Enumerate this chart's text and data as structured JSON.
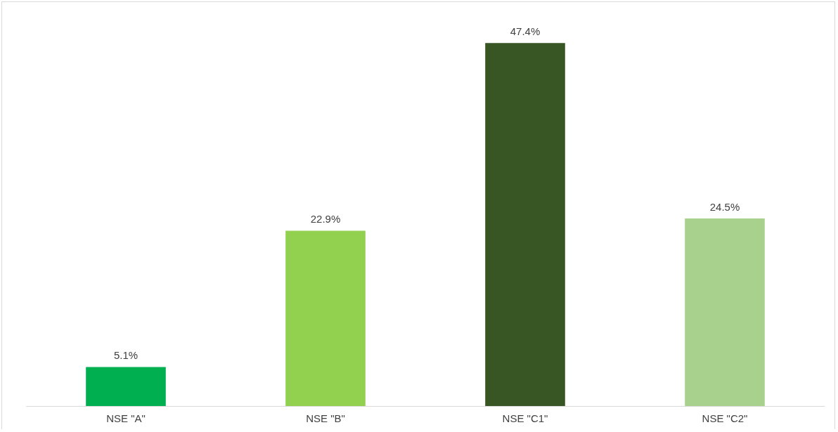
{
  "chart_data": {
    "type": "bar",
    "categories": [
      "NSE \"A\"",
      "NSE \"B\"",
      "NSE \"C1\"",
      "NSE \"C2\""
    ],
    "values": [
      5.1,
      22.9,
      47.4,
      24.5
    ],
    "colors": [
      "#00b050",
      "#92d050",
      "#375623",
      "#a9d18e"
    ],
    "value_labels": [
      "5.1%",
      "22.9%",
      "47.4%",
      "24.5%"
    ]
  }
}
